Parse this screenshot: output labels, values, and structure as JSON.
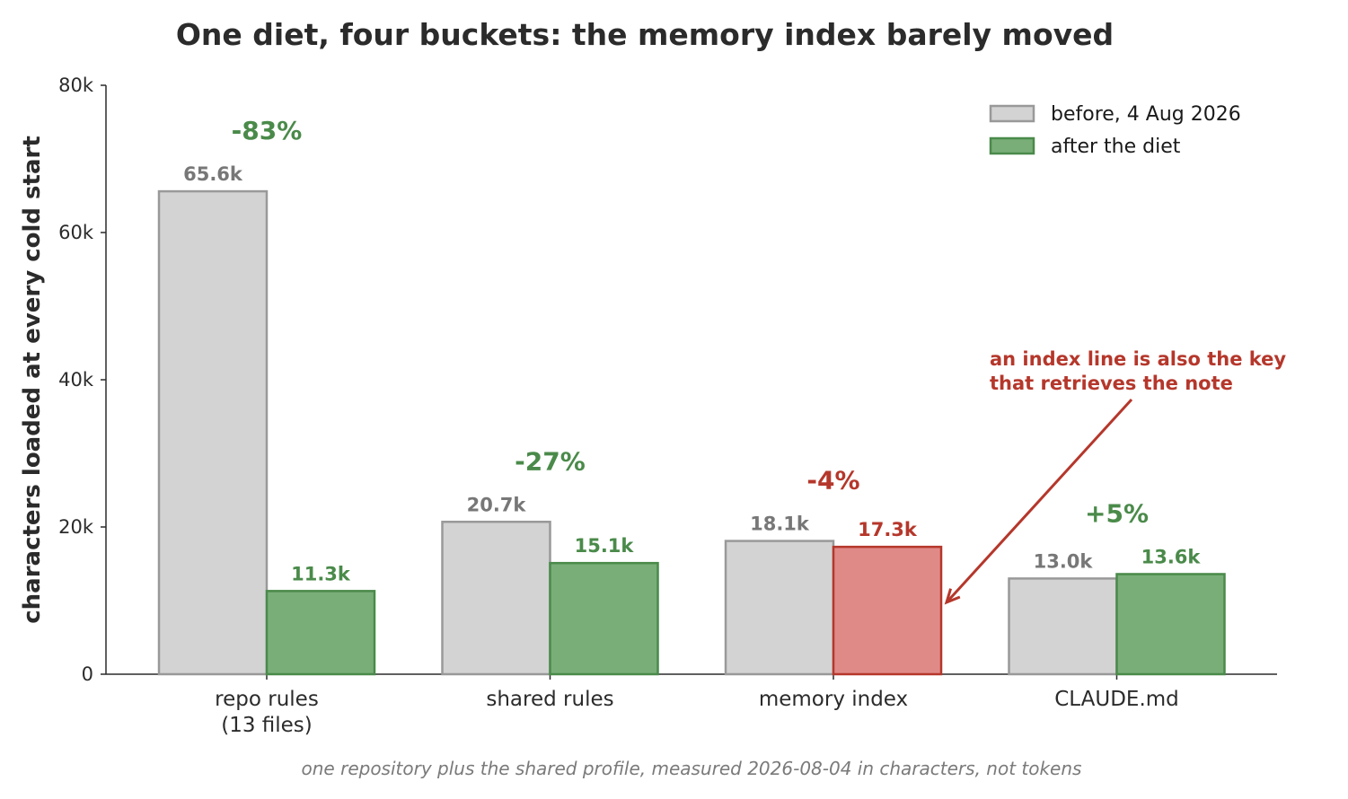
{
  "chart_data": {
    "type": "bar",
    "title": "One diet, four buckets: the memory index barely moved",
    "xlabel": "",
    "ylabel": "characters loaded at every cold start",
    "ylim": [
      0,
      80000
    ],
    "yticks": [
      {
        "value": 0,
        "label": "0"
      },
      {
        "value": 20000,
        "label": "20k"
      },
      {
        "value": 40000,
        "label": "40k"
      },
      {
        "value": 60000,
        "label": "60k"
      },
      {
        "value": 80000,
        "label": "80k"
      }
    ],
    "categories": [
      {
        "lines": [
          "repo rules",
          "(13 files)"
        ]
      },
      {
        "lines": [
          "shared rules"
        ]
      },
      {
        "lines": [
          "memory index"
        ]
      },
      {
        "lines": [
          "CLAUDE.md"
        ]
      }
    ],
    "series": [
      {
        "name": "before, 4 Aug 2026",
        "values": [
          65600,
          20700,
          18100,
          13000
        ],
        "labels": [
          "65.6k",
          "20.7k",
          "18.1k",
          "13.0k"
        ],
        "fill": "#d3d3d3",
        "stroke": "#999999",
        "label_color": "#777777"
      },
      {
        "name": "after the diet",
        "values": [
          11300,
          15100,
          17300,
          13600
        ],
        "labels": [
          "11.3k",
          "15.1k",
          "17.3k",
          "13.6k"
        ],
        "fill": "#79ae79",
        "stroke": "#4a8a4a",
        "label_color": "#4a8a4a"
      }
    ],
    "highlight": {
      "index": 2,
      "fill": "#e08a88",
      "stroke": "#b5372b",
      "label_color": "#b5372b"
    },
    "changes": [
      {
        "label": "-83%",
        "color": "#4a8a4a"
      },
      {
        "label": "-27%",
        "color": "#4a8a4a"
      },
      {
        "label": "-4%",
        "color": "#b5372b"
      },
      {
        "label": "+5%",
        "color": "#4a8a4a"
      }
    ],
    "annotation": {
      "lines": [
        "an index line is also the key",
        "that retrieves the note"
      ],
      "color": "#b5372b"
    },
    "legend_position": "top-right",
    "grid": false,
    "footnote": "one repository plus the shared profile, measured 2026-08-04 in characters, not tokens"
  }
}
